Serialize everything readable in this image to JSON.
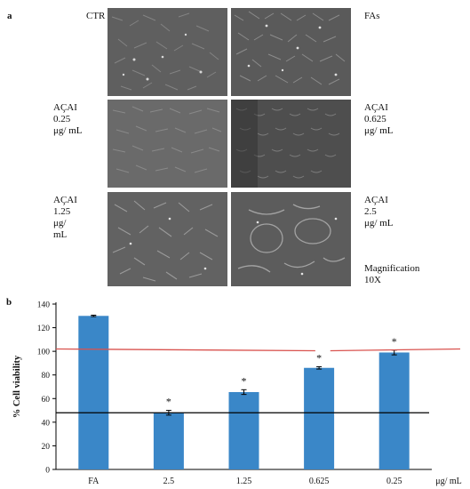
{
  "panel_a": {
    "letter": "a",
    "labels": {
      "ctr": "CTR",
      "fas": "FAs",
      "acai_025": "AÇAI\n0.25\nμg/ mL",
      "acai_0625": "AÇAI\n0.625\nμg/ mL",
      "acai_125": "AÇAI\n1.25\nμg/\nmL",
      "acai_25": "AÇAI\n2.5\nμg/ mL",
      "magnification": "Magnification\n10X"
    },
    "images": [
      "CTR",
      "FAs",
      "AÇAI 0.25 μg/ mL",
      "AÇAI 0.625 μg/ mL",
      "AÇAI 1.25 μg/ mL",
      "AÇAI 2.5 μg/ mL"
    ]
  },
  "panel_b": {
    "letter": "b"
  },
  "chart_data": {
    "type": "bar",
    "categories": [
      "FA",
      "2.5",
      "1.25",
      "0.625",
      "0.25"
    ],
    "values": [
      130,
      48,
      65.5,
      86,
      99
    ],
    "errors": [
      0.6,
      2,
      2,
      1,
      2
    ],
    "significance": [
      "",
      "*",
      "*",
      "*",
      "*"
    ],
    "xlabel": "μg/ mL",
    "ylabel": "% Cell viability",
    "ylim": [
      0,
      140
    ],
    "yticks": [
      "0",
      "20",
      "40",
      "60",
      "80",
      "100",
      "120",
      "140"
    ],
    "bar_color": "#3a87c8",
    "reference_lines": [
      {
        "y": 48,
        "color": "#000000"
      },
      {
        "y": 102,
        "color": "#d9534f"
      }
    ]
  }
}
